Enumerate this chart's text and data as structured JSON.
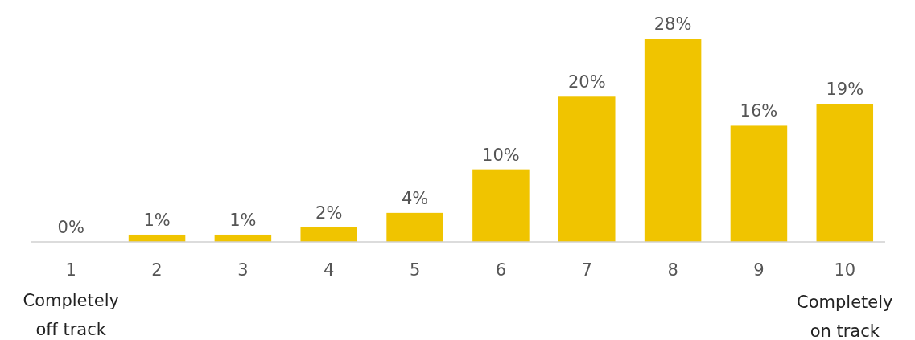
{
  "chart_data": {
    "type": "bar",
    "categories": [
      "1",
      "2",
      "3",
      "4",
      "5",
      "6",
      "7",
      "8",
      "9",
      "10"
    ],
    "values": [
      0,
      1,
      1,
      2,
      4,
      10,
      20,
      28,
      16,
      19
    ],
    "value_labels": [
      "0%",
      "1%",
      "1%",
      "2%",
      "4%",
      "10%",
      "20%",
      "28%",
      "16%",
      "19%"
    ],
    "color": "#f0c400",
    "annotations": [
      "Completely off track",
      "Completely on track"
    ]
  }
}
